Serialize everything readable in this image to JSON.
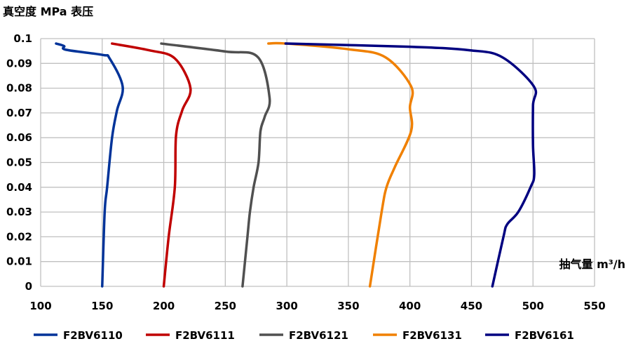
{
  "chart_data": {
    "type": "line",
    "title": "真空度 MPa 表压",
    "xlabel": "抽气量 m³/h",
    "ylabel": "真空度 MPa 表压",
    "xlim": [
      100,
      550
    ],
    "ylim": [
      0,
      0.1
    ],
    "xticks": [
      "100",
      "150",
      "200",
      "250",
      "300",
      "350",
      "400",
      "450",
      "500",
      "550"
    ],
    "yticks": [
      "0",
      "0.01",
      "0.02",
      "0.03",
      "0.04",
      "0.05",
      "0.06",
      "0.07",
      "0.08",
      "0.09",
      "0.1"
    ],
    "grid": true,
    "legend_position": "bottom",
    "series": [
      {
        "name": "F2BV6110",
        "color": "#003399",
        "points": [
          [
            112.5,
            0.098
          ],
          [
            119,
            0.097
          ],
          [
            120.5,
            0.0955
          ],
          [
            150.5,
            0.0934
          ],
          [
            156,
            0.092
          ],
          [
            166.6,
            0.0807
          ],
          [
            162,
            0.071
          ],
          [
            158,
            0.06
          ],
          [
            154,
            0.04
          ],
          [
            152,
            0.03
          ],
          [
            150,
            0
          ]
        ]
      },
      {
        "name": "F2BV6111",
        "color": "#c00000",
        "points": [
          [
            158,
            0.098
          ],
          [
            188,
            0.0953
          ],
          [
            209,
            0.092
          ],
          [
            221.7,
            0.08
          ],
          [
            215,
            0.071
          ],
          [
            210,
            0.061
          ],
          [
            209,
            0.04
          ],
          [
            204,
            0.02
          ],
          [
            200,
            0
          ]
        ]
      },
      {
        "name": "F2BV6121",
        "color": "#505050",
        "points": [
          [
            198,
            0.098
          ],
          [
            250,
            0.0948
          ],
          [
            276.5,
            0.0925
          ],
          [
            286,
            0.076
          ],
          [
            282,
            0.0684
          ],
          [
            278.6,
            0.0627
          ],
          [
            277,
            0.05
          ],
          [
            273,
            0.04
          ],
          [
            270,
            0.03
          ],
          [
            268,
            0.02
          ],
          [
            264,
            0
          ]
        ]
      },
      {
        "name": "F2BV6131",
        "color": "#f08000",
        "points": [
          [
            285,
            0.098
          ],
          [
            299,
            0.098
          ],
          [
            350,
            0.0957
          ],
          [
            380,
            0.0925
          ],
          [
            401,
            0.0807
          ],
          [
            400,
            0.0722
          ],
          [
            401,
            0.0627
          ],
          [
            387.6,
            0.048
          ],
          [
            381,
            0.04
          ],
          [
            377,
            0.03
          ],
          [
            367.5,
            0
          ]
        ]
      },
      {
        "name": "F2BV6161",
        "color": "#000080",
        "points": [
          [
            299,
            0.098
          ],
          [
            400,
            0.0967
          ],
          [
            448.5,
            0.0953
          ],
          [
            475,
            0.0925
          ],
          [
            500.7,
            0.0807
          ],
          [
            500,
            0.073
          ],
          [
            500,
            0.057
          ],
          [
            501,
            0.045
          ],
          [
            498,
            0.04
          ],
          [
            488,
            0.03
          ],
          [
            479,
            0.025
          ],
          [
            476,
            0.02
          ],
          [
            467,
            0
          ]
        ]
      }
    ]
  }
}
